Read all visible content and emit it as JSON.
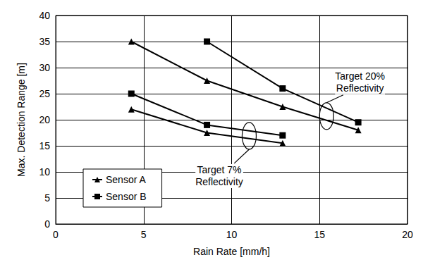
{
  "chart_data": {
    "type": "line",
    "x_label": "Rain Rate [mm/h]",
    "y_label": "Max. Detection Range [m]",
    "xlim": [
      0,
      20
    ],
    "xticks": [
      0,
      5,
      10,
      15,
      20
    ],
    "ylim": [
      0,
      40
    ],
    "yticks": [
      0,
      5,
      10,
      15,
      20,
      25,
      30,
      35,
      40
    ],
    "grid": true,
    "legend": "lower left",
    "series": [
      {
        "name": "Sensor A",
        "marker": "triangle",
        "color": "#000000",
        "x": [
          4.3,
          8.6,
          12.9,
          17.2
        ],
        "values": [
          35,
          27.5,
          22.5,
          18
        ]
      },
      {
        "name": "Sensor B",
        "marker": "square",
        "color": "#000000",
        "x": [
          8.6,
          12.9,
          17.2
        ],
        "values": [
          35,
          26,
          19.5
        ]
      },
      {
        "name": "Sensor A",
        "marker": "triangle",
        "color": "#000000",
        "x": [
          4.3,
          8.6,
          12.9
        ],
        "values": [
          22,
          17.5,
          15.5
        ]
      },
      {
        "name": "Sensor B",
        "marker": "square",
        "color": "#000000",
        "x": [
          4.3,
          8.6,
          12.9
        ],
        "values": [
          25,
          19,
          17
        ]
      }
    ],
    "annotations": [
      {
        "text": "Target 20% Reflectivity",
        "x": 17.3,
        "y": 27.2,
        "ellipse": [
          15.4,
          20.7
        ]
      },
      {
        "text": "Target 7% Reflectivity",
        "x": 9.3,
        "y": 9.2,
        "ellipse": [
          11.0,
          16.9
        ]
      }
    ]
  }
}
